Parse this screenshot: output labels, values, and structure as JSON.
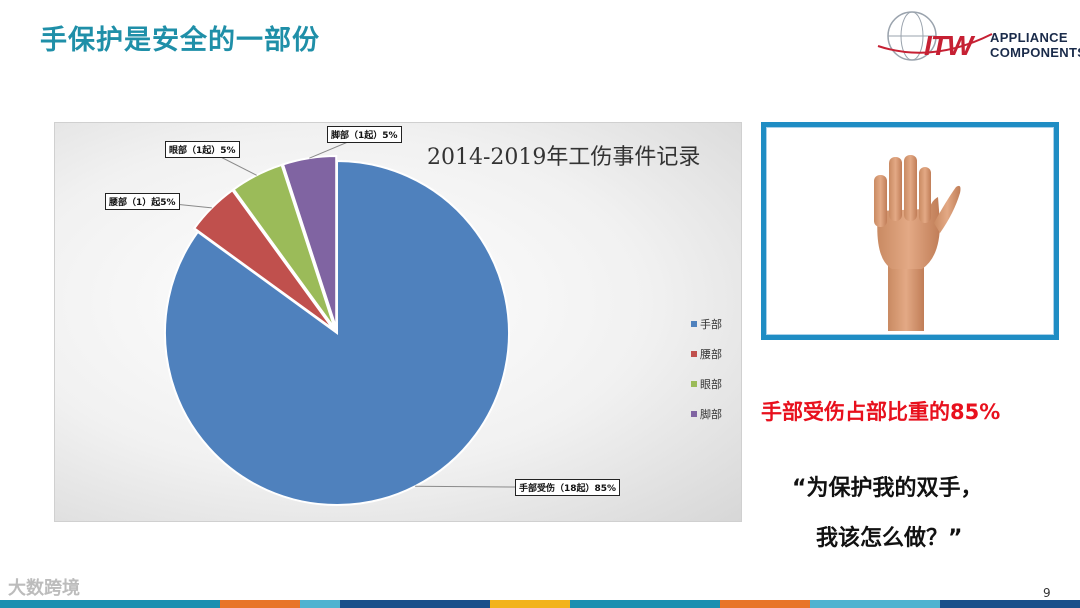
{
  "slide": {
    "title": "手保护是安全的一部份",
    "page_number": "9",
    "watermark": "大数跨境"
  },
  "logo": {
    "brand": "ITW",
    "line1": "APPLIANCE",
    "line2": "COMPONENTS"
  },
  "chart_data": {
    "type": "pie",
    "title": "2014-2019年工伤事件记录",
    "categories": [
      "手部",
      "腰部",
      "眼部",
      "脚部"
    ],
    "values": [
      85,
      5,
      5,
      5
    ],
    "counts": [
      18,
      1,
      1,
      1
    ],
    "colors": [
      "#4f81bd",
      "#c0504d",
      "#9bbb59",
      "#8064a2"
    ],
    "data_labels": [
      "手部受伤（18起）85%",
      "腰部（1）起5%",
      "眼部（1起）5%",
      "脚部（1起）5%"
    ],
    "legend": {
      "position": "right",
      "entries": [
        "手部",
        "腰部",
        "眼部",
        "脚部"
      ]
    }
  },
  "right_panel": {
    "highlight": "手部受伤占部比重的85%",
    "quote_line1": "“为保护我的双手，",
    "quote_line2": "我该怎么做？”"
  },
  "bottom_bar_colors": [
    "#1b8fb0",
    "#1b8fb0",
    "#e8752a",
    "#4fb3d0",
    "#1a4f8a",
    "#f2b31b",
    "#1b8fb0",
    "#e8752a",
    "#4fb3d0",
    "#1a4f8a"
  ]
}
